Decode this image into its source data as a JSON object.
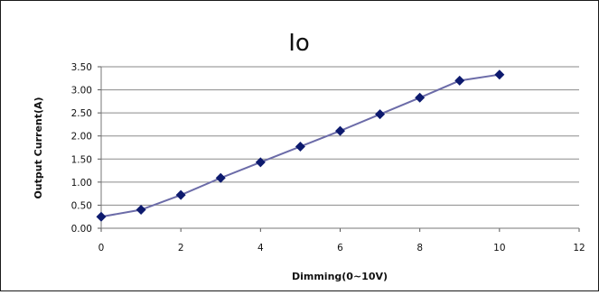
{
  "chart_data": {
    "type": "line",
    "title": "Io",
    "xlabel": "Dimming(0~10V)",
    "ylabel": "Output Current(A)",
    "xlim": [
      0,
      12
    ],
    "ylim": [
      0,
      3.5
    ],
    "x_ticks": [
      "0",
      "2",
      "4",
      "6",
      "8",
      "10",
      "12"
    ],
    "y_ticks": [
      "0.00",
      "0.50",
      "1.00",
      "1.50",
      "2.00",
      "2.50",
      "3.00",
      "3.50"
    ],
    "grid": true,
    "legend": "none",
    "series": [
      {
        "x": [
          0,
          1,
          2,
          3,
          4,
          5,
          6,
          7,
          8,
          9,
          10
        ],
        "values": [
          0.25,
          0.4,
          0.72,
          1.09,
          1.43,
          1.77,
          2.11,
          2.47,
          2.83,
          3.2,
          3.33
        ],
        "line_color": "#6b6ba8",
        "marker_color": "#0d1a6e"
      }
    ]
  }
}
